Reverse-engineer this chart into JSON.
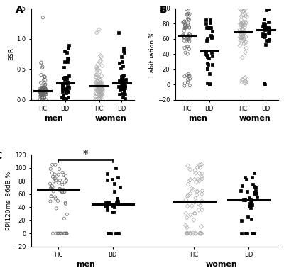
{
  "panel_A": {
    "label": "A",
    "ylabel": "BSR",
    "ylim": [
      0,
      1.5
    ],
    "yticks": [
      0,
      0.5,
      1.0,
      1.5
    ]
  },
  "panel_B": {
    "label": "B",
    "ylabel": "Habituation %",
    "ylim": [
      -20,
      100
    ],
    "yticks": [
      -20,
      0,
      20,
      40,
      60,
      80,
      100
    ]
  },
  "panel_C": {
    "label": "C",
    "ylabel": "PPI120ms_86dB %",
    "ylim": [
      -20,
      120
    ],
    "yticks": [
      -20,
      0,
      20,
      40,
      60,
      80,
      100,
      120
    ]
  },
  "background_color": "#ffffff"
}
